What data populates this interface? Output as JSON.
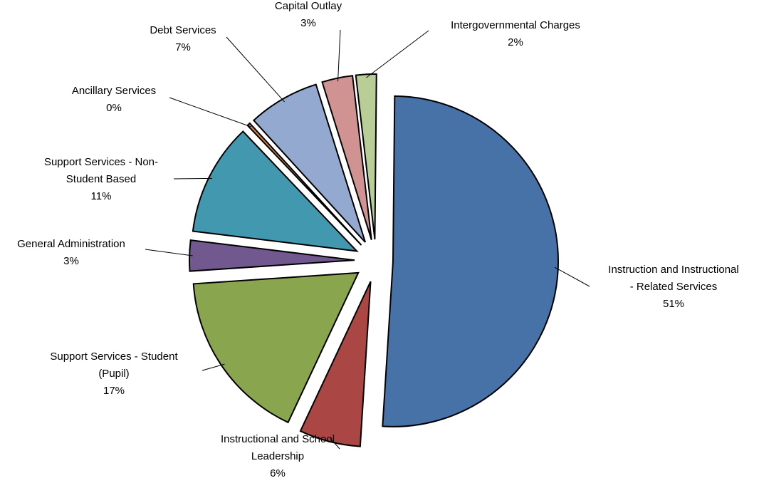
{
  "chart_data": {
    "type": "pie",
    "title": "",
    "legend": "none",
    "slices": [
      {
        "name": "Instruction and Instructional - Related Services",
        "label_lines": [
          "Instruction and Instructional",
          "- Related Services"
        ],
        "value": 51,
        "pct_label": "51%",
        "color": "#4672A8"
      },
      {
        "name": "Instructional and School Leadership",
        "label_lines": [
          "Instructional and School",
          "Leadership"
        ],
        "value": 6,
        "pct_label": "6%",
        "color": "#AA4643"
      },
      {
        "name": "Support Services - Student (Pupil)",
        "label_lines": [
          "Support Services - Student",
          "(Pupil)"
        ],
        "value": 17,
        "pct_label": "17%",
        "color": "#89A54E"
      },
      {
        "name": "General Administration",
        "label_lines": [
          "General Administration"
        ],
        "value": 3,
        "pct_label": "3%",
        "color": "#71588F"
      },
      {
        "name": "Support Services - Non-Student Based",
        "label_lines": [
          "Support Services - Non-",
          "Student Based"
        ],
        "value": 11,
        "pct_label": "11%",
        "color": "#4198AF"
      },
      {
        "name": "Ancillary Services",
        "label_lines": [
          "Ancillary Services"
        ],
        "value": 0,
        "pct_label": "0%",
        "color": "#DB843D"
      },
      {
        "name": "Debt Services",
        "label_lines": [
          "Debt Services"
        ],
        "value": 7,
        "pct_label": "7%",
        "color": "#93A9CF"
      },
      {
        "name": "Capital Outlay",
        "label_lines": [
          "Capital Outlay"
        ],
        "value": 3,
        "pct_label": "3%",
        "color": "#D19392"
      },
      {
        "name": "Intergovernmental Charges",
        "label_lines": [
          "Intergovernmental Charges"
        ],
        "value": 2,
        "pct_label": "2%",
        "color": "#B9CD96"
      }
    ]
  }
}
